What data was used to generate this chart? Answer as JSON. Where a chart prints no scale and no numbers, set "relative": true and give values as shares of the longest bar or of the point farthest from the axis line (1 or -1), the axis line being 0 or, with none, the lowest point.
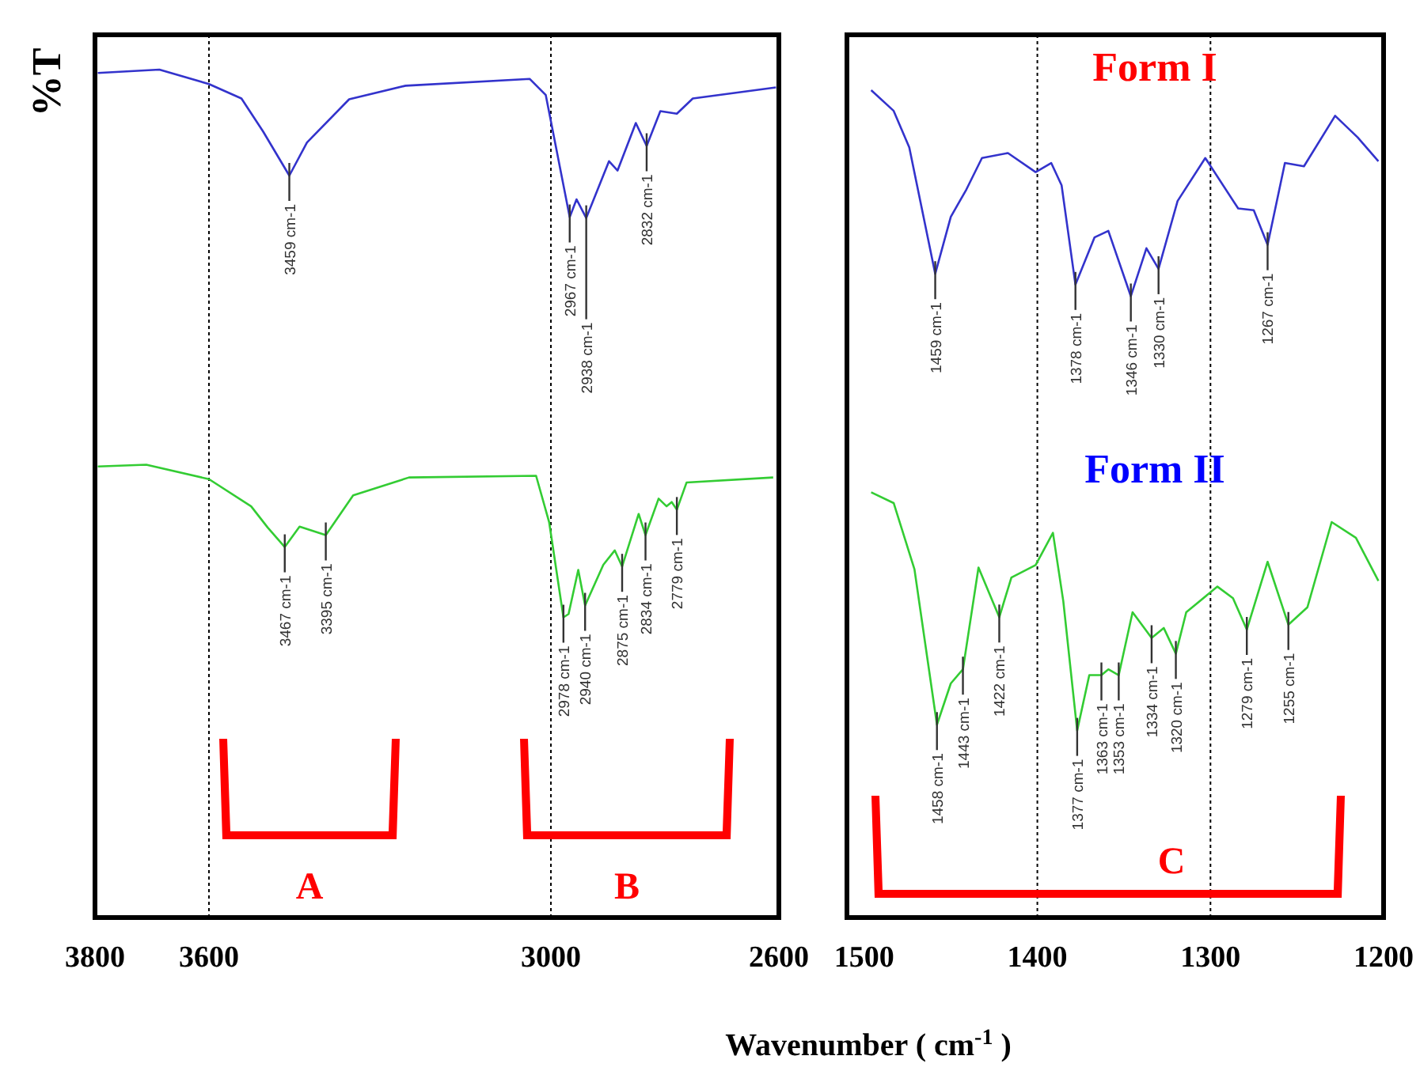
{
  "chart_data": [
    {
      "type": "line",
      "relative": true,
      "ylabel": "%T",
      "xlim": [
        3800,
        2600
      ],
      "xticks": [
        3800,
        3600,
        3000,
        2600
      ],
      "series": [
        {
          "color": "#3333cc",
          "x": [
            3795,
            3687,
            3600,
            3543,
            3505,
            3459,
            3428,
            3354,
            3255,
            3037,
            3009,
            2967,
            2955,
            2938,
            2898,
            2883,
            2851,
            2832,
            2808,
            2779,
            2751,
            2605
          ],
          "values": [
            0.996,
            1.0,
            0.983,
            0.966,
            0.927,
            0.875,
            0.914,
            0.965,
            0.981,
            0.989,
            0.97,
            0.826,
            0.847,
            0.825,
            0.892,
            0.881,
            0.937,
            0.91,
            0.951,
            0.948,
            0.966,
            0.979
          ]
        },
        {
          "color": "#33cc33",
          "x": [
            3795,
            3710,
            3600,
            3526,
            3497,
            3467,
            3441,
            3395,
            3347,
            3249,
            3026,
            3003,
            2978,
            2969,
            2952,
            2940,
            2908,
            2888,
            2875,
            2846,
            2834,
            2811,
            2797,
            2788,
            2779,
            2762,
            2610
          ],
          "values": [
            0.532,
            0.534,
            0.517,
            0.485,
            0.46,
            0.437,
            0.461,
            0.451,
            0.498,
            0.519,
            0.521,
            0.466,
            0.354,
            0.358,
            0.41,
            0.368,
            0.416,
            0.433,
            0.414,
            0.476,
            0.451,
            0.494,
            0.485,
            0.49,
            0.481,
            0.513,
            0.519
          ]
        }
      ],
      "annotations": [
        {
          "text": "3459 cm-1",
          "x": 3459,
          "y": 0.875
        },
        {
          "text": "2967 cm-1",
          "x": 2967,
          "y": 0.826
        },
        {
          "text": "2938 cm-1",
          "x": 2938,
          "y": 0.825
        },
        {
          "text": "2832 cm-1",
          "x": 2832,
          "y": 0.91
        },
        {
          "text": "3467 cm-1",
          "x": 3467,
          "y": 0.437
        },
        {
          "text": "3395 cm-1",
          "x": 3395,
          "y": 0.451
        },
        {
          "text": "2978 cm-1",
          "x": 2978,
          "y": 0.354
        },
        {
          "text": "2940 cm-1",
          "x": 2940,
          "y": 0.368
        },
        {
          "text": "2875 cm-1",
          "x": 2875,
          "y": 0.414
        },
        {
          "text": "2834 cm-1",
          "x": 2834,
          "y": 0.451
        },
        {
          "text": "2779 cm-1",
          "x": 2779,
          "y": 0.481
        },
        "A",
        "B"
      ],
      "ref_lines": [
        {
          "axis": "x",
          "value": 3600,
          "line_style": "dotted",
          "color": "#000000"
        },
        {
          "axis": "x",
          "value": 3000,
          "line_style": "dotted",
          "color": "#000000"
        }
      ]
    },
    {
      "type": "line",
      "relative": true,
      "xlabel": "Wavenumber ( cm$^{-1}$ )",
      "xlim": [
        1510,
        1200
      ],
      "xticks": [
        1500,
        1400,
        1300,
        1200
      ],
      "series": [
        {
          "name": "Form I",
          "color": "#3333cc",
          "x": [
            1496,
            1483,
            1474,
            1459,
            1450,
            1441,
            1432,
            1417,
            1401,
            1392,
            1386,
            1378,
            1367,
            1359,
            1346,
            1337,
            1330,
            1319,
            1303,
            1284,
            1275,
            1267,
            1257,
            1246,
            1228,
            1215,
            1203
          ],
          "values": [
            1.0,
            0.975,
            0.931,
            0.778,
            0.847,
            0.88,
            0.918,
            0.924,
            0.901,
            0.912,
            0.885,
            0.765,
            0.822,
            0.83,
            0.751,
            0.809,
            0.784,
            0.866,
            0.918,
            0.857,
            0.855,
            0.813,
            0.912,
            0.908,
            0.969,
            0.943,
            0.914
          ]
        },
        {
          "name": "Form II",
          "color": "#33cc33",
          "x": [
            1496,
            1483,
            1471,
            1458,
            1450,
            1443,
            1434,
            1422,
            1415,
            1401,
            1391,
            1385,
            1377,
            1370,
            1363,
            1359,
            1353,
            1345,
            1334,
            1327,
            1320,
            1314,
            1296,
            1287,
            1279,
            1267,
            1255,
            1244,
            1230,
            1216,
            1203
          ],
          "values": [
            0.514,
            0.501,
            0.421,
            0.233,
            0.283,
            0.3,
            0.423,
            0.363,
            0.411,
            0.426,
            0.465,
            0.382,
            0.226,
            0.293,
            0.293,
            0.3,
            0.293,
            0.369,
            0.338,
            0.35,
            0.319,
            0.369,
            0.4,
            0.386,
            0.348,
            0.43,
            0.354,
            0.375,
            0.478,
            0.459,
            0.407
          ]
        }
      ],
      "annotations": [
        {
          "text": "1459 cm-1",
          "x": 1459,
          "y": 0.778
        },
        {
          "text": "1378 cm-1",
          "x": 1378,
          "y": 0.765
        },
        {
          "text": "1346 cm-1",
          "x": 1346,
          "y": 0.751
        },
        {
          "text": "1330 cm-1",
          "x": 1330,
          "y": 0.784
        },
        {
          "text": "1267 cm-1",
          "x": 1267,
          "y": 0.813
        },
        {
          "text": "1458 cm-1",
          "x": 1458,
          "y": 0.233
        },
        {
          "text": "1443 cm-1",
          "x": 1443,
          "y": 0.3
        },
        {
          "text": "1422 cm-1",
          "x": 1422,
          "y": 0.363
        },
        {
          "text": "1377 cm-1",
          "x": 1377,
          "y": 0.226
        },
        {
          "text": "1363 cm-1",
          "x": 1363,
          "y": 0.293
        },
        {
          "text": "1353 cm-1",
          "x": 1353,
          "y": 0.293
        },
        {
          "text": "1334 cm-1",
          "x": 1334,
          "y": 0.338
        },
        {
          "text": "1320 cm-1",
          "x": 1320,
          "y": 0.319
        },
        {
          "text": "1279 cm-1",
          "x": 1279,
          "y": 0.348
        },
        {
          "text": "1255 cm-1",
          "x": 1255,
          "y": 0.354
        },
        "C"
      ],
      "ref_lines": [
        {
          "axis": "x",
          "value": 1400,
          "line_style": "dotted",
          "color": "#000000"
        },
        {
          "axis": "x",
          "value": 1300,
          "line_style": "dotted",
          "color": "#000000"
        }
      ]
    }
  ]
}
